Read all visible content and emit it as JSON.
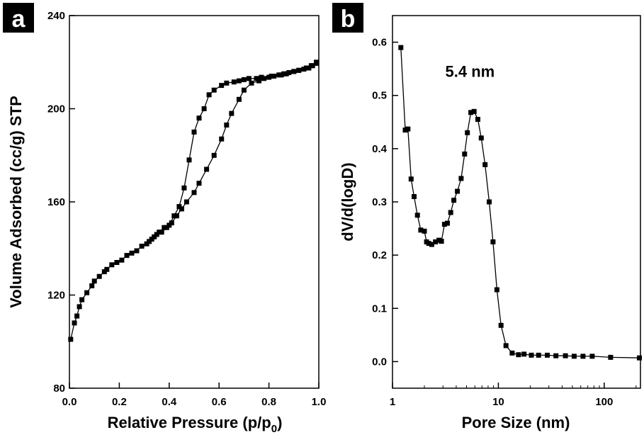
{
  "chart_data": [
    {
      "panel": "a",
      "type": "scatter",
      "xlabel": "Relative Pressure (p/p",
      "xlabel_sub": "0",
      "xlabel_end": ")",
      "ylabel": "Volume Adsorbed (cc/g) STP",
      "xlim": [
        0,
        1.0
      ],
      "ylim": [
        80,
        240
      ],
      "xticks": [
        0.0,
        0.2,
        0.4,
        0.6,
        0.8,
        1.0
      ],
      "xtick_labels": [
        "0.0",
        "0.2",
        "0.4",
        "0.6",
        "0.8",
        "1.0"
      ],
      "yticks": [
        80,
        120,
        160,
        200,
        240
      ],
      "ytick_labels": [
        "80",
        "120",
        "160",
        "200",
        "240"
      ],
      "grid": false,
      "marker": "square",
      "series": [
        {
          "x": [
            0.005,
            0.02,
            0.03,
            0.04,
            0.05,
            0.07,
            0.09,
            0.1,
            0.12,
            0.14,
            0.15,
            0.17,
            0.19,
            0.21,
            0.23,
            0.25,
            0.27,
            0.29,
            0.31,
            0.33,
            0.35,
            0.37,
            0.39,
            0.41,
            0.43,
            0.45,
            0.47,
            0.5,
            0.52,
            0.55,
            0.58,
            0.61,
            0.63,
            0.65,
            0.68,
            0.7,
            0.73,
            0.76,
            0.78,
            0.81,
            0.84,
            0.86,
            0.88,
            0.9,
            0.92,
            0.94,
            0.96,
            0.975,
            0.99
          ],
          "y": [
            101,
            108,
            111,
            115,
            118,
            121,
            124,
            126,
            128,
            130,
            131,
            133,
            134,
            135,
            137,
            138,
            139,
            141,
            142,
            144,
            146,
            147,
            149,
            151,
            154,
            157,
            160,
            164,
            168,
            174,
            180,
            187,
            193,
            198,
            204,
            208,
            211,
            212,
            213,
            214,
            214.5,
            215,
            215.5,
            216,
            216.5,
            217,
            217.5,
            218.5,
            219.5
          ]
        },
        {
          "x": [
            0.99,
            0.97,
            0.95,
            0.92,
            0.9,
            0.87,
            0.85,
            0.82,
            0.8,
            0.77,
            0.75,
            0.72,
            0.7,
            0.68,
            0.66,
            0.63,
            0.61,
            0.58,
            0.56,
            0.54,
            0.52,
            0.5,
            0.48,
            0.46,
            0.44,
            0.42,
            0.4,
            0.38,
            0.36,
            0.34,
            0.32
          ],
          "y": [
            220,
            218.5,
            217.5,
            216.5,
            216,
            215,
            214.5,
            214,
            213.5,
            213.5,
            213,
            213,
            212.5,
            212,
            211.5,
            211,
            210,
            208,
            206,
            200,
            196,
            190,
            178,
            166,
            158,
            154,
            150,
            149,
            147,
            145,
            143
          ]
        }
      ]
    },
    {
      "panel": "b",
      "type": "line",
      "xlabel": "Pore Size (nm)",
      "ylabel": "dV/d(logD)",
      "xscale": "log",
      "xlim": [
        1,
        220
      ],
      "ylim": [
        -0.05,
        0.65
      ],
      "xticks": [
        1,
        10,
        100
      ],
      "xtick_labels": [
        "1",
        "10",
        "100"
      ],
      "yticks": [
        0.0,
        0.1,
        0.2,
        0.3,
        0.4,
        0.5,
        0.6
      ],
      "ytick_labels": [
        "0.0",
        "0.1",
        "0.2",
        "0.3",
        "0.4",
        "0.5",
        "0.6"
      ],
      "grid": false,
      "marker": "square",
      "annotation": {
        "text": "5.4 nm",
        "x": 5.4,
        "y": 0.535
      },
      "series": [
        {
          "x": [
            1.2,
            1.32,
            1.4,
            1.5,
            1.6,
            1.72,
            1.85,
            2.0,
            2.1,
            2.2,
            2.35,
            2.55,
            2.75,
            2.9,
            3.1,
            3.3,
            3.55,
            3.8,
            4.1,
            4.45,
            4.8,
            5.1,
            5.5,
            5.9,
            6.4,
            6.9,
            7.5,
            8.2,
            8.9,
            9.7,
            10.6,
            11.8,
            13.5,
            15.5,
            17.5,
            20.5,
            24,
            29,
            35,
            43,
            52,
            63,
            77,
            115,
            215
          ],
          "y": [
            0.59,
            0.435,
            0.437,
            0.343,
            0.31,
            0.275,
            0.247,
            0.245,
            0.225,
            0.222,
            0.22,
            0.225,
            0.228,
            0.226,
            0.258,
            0.26,
            0.28,
            0.303,
            0.32,
            0.344,
            0.39,
            0.43,
            0.468,
            0.47,
            0.455,
            0.42,
            0.37,
            0.3,
            0.225,
            0.135,
            0.068,
            0.03,
            0.016,
            0.013,
            0.014,
            0.012,
            0.012,
            0.012,
            0.011,
            0.011,
            0.01,
            0.01,
            0.01,
            0.008,
            0.007
          ]
        }
      ]
    }
  ]
}
